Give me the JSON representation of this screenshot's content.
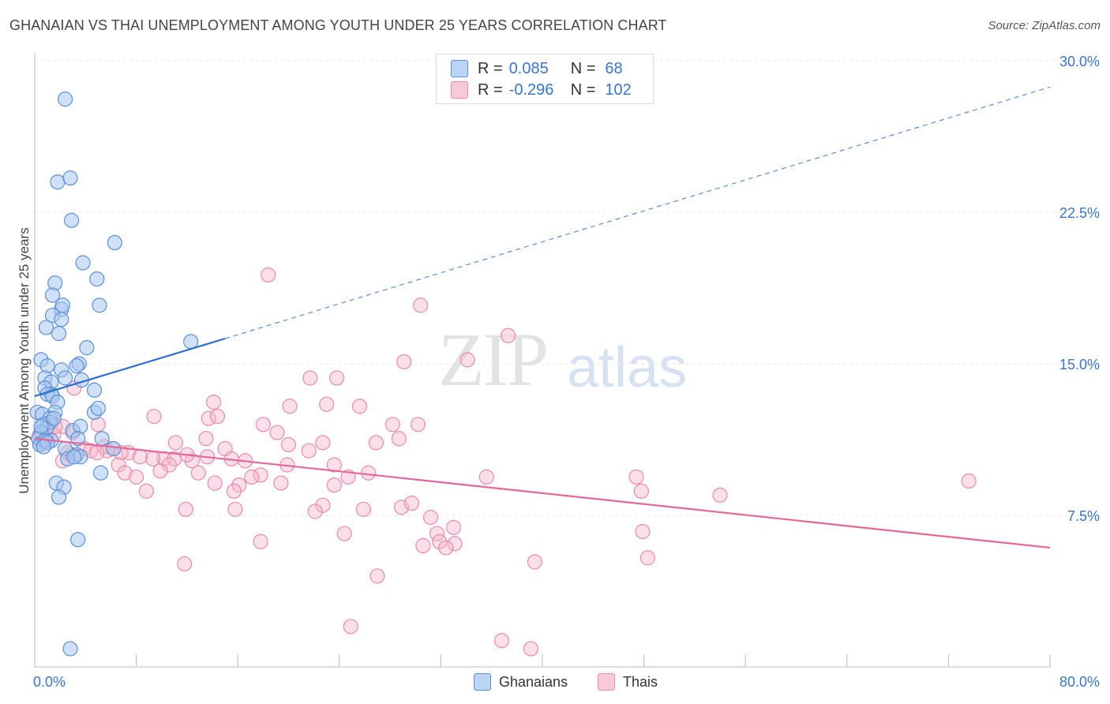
{
  "title": "GHANAIAN VS THAI UNEMPLOYMENT AMONG YOUTH UNDER 25 YEARS CORRELATION CHART",
  "source": "Source: ZipAtlas.com",
  "watermark": {
    "zip": "ZIP",
    "atlas": "atlas"
  },
  "legend": {
    "rows": [
      {
        "r_label": "R =",
        "r_value": "0.085",
        "n_label": "N =",
        "n_value": "68",
        "color": "#a9c7ee"
      },
      {
        "r_label": "R =",
        "r_value": "-0.296",
        "n_label": "N =",
        "n_value": "102",
        "color": "#f5b8cb"
      }
    ]
  },
  "bottom_legend": {
    "ghanaians": "Ghanaians",
    "thais": "Thais"
  },
  "colors": {
    "blue_fill": "#a9c7ee",
    "blue_stroke": "#5b8fd6",
    "blue_line": "#2b6fce",
    "pink_fill": "#f5b8cb",
    "pink_stroke": "#e98aa8",
    "pink_line": "#e4669a",
    "tick_text": "#3a74c4",
    "grid": "#e6e6e6"
  },
  "chart_data": {
    "type": "scatter",
    "title": "GHANAIAN VS THAI UNEMPLOYMENT AMONG YOUTH UNDER 25 YEARS CORRELATION CHART",
    "xlabel": "",
    "ylabel": "Unemployment Among Youth under 25 years",
    "xlim": [
      0,
      80
    ],
    "ylim": [
      0,
      30
    ],
    "x_tick_labels": [
      "0.0%",
      "80.0%"
    ],
    "y_ticks": [
      7.5,
      15.0,
      22.5,
      30.0
    ],
    "y_tick_labels": [
      "7.5%",
      "15.0%",
      "22.5%",
      "30.0%"
    ],
    "grid": true,
    "series": [
      {
        "name": "Ghanaians",
        "points": [
          [
            2.4,
            28.1
          ],
          [
            1.8,
            24.0
          ],
          [
            2.8,
            24.2
          ],
          [
            2.9,
            22.1
          ],
          [
            6.3,
            21.0
          ],
          [
            3.8,
            20.0
          ],
          [
            1.6,
            19.0
          ],
          [
            4.9,
            19.2
          ],
          [
            1.4,
            18.4
          ],
          [
            2.1,
            17.7
          ],
          [
            5.1,
            17.9
          ],
          [
            2.2,
            17.9
          ],
          [
            1.4,
            17.4
          ],
          [
            2.1,
            17.2
          ],
          [
            0.9,
            16.8
          ],
          [
            1.9,
            16.5
          ],
          [
            12.3,
            16.1
          ],
          [
            4.1,
            15.8
          ],
          [
            0.5,
            15.2
          ],
          [
            3.5,
            15.0
          ],
          [
            3.3,
            14.9
          ],
          [
            1.0,
            14.9
          ],
          [
            2.1,
            14.7
          ],
          [
            0.8,
            14.3
          ],
          [
            1.3,
            14.1
          ],
          [
            2.4,
            14.3
          ],
          [
            3.7,
            14.2
          ],
          [
            0.8,
            13.8
          ],
          [
            1.3,
            13.5
          ],
          [
            4.7,
            13.7
          ],
          [
            1.0,
            13.5
          ],
          [
            1.4,
            13.4
          ],
          [
            1.8,
            13.1
          ],
          [
            0.2,
            12.6
          ],
          [
            1.6,
            12.6
          ],
          [
            0.6,
            12.5
          ],
          [
            1.2,
            12.3
          ],
          [
            4.7,
            12.6
          ],
          [
            1.2,
            12.1
          ],
          [
            0.7,
            12.0
          ],
          [
            5.0,
            12.8
          ],
          [
            0.9,
            11.8
          ],
          [
            3.0,
            11.7
          ],
          [
            3.6,
            11.9
          ],
          [
            0.5,
            11.6
          ],
          [
            0.3,
            11.3
          ],
          [
            0.6,
            11.1
          ],
          [
            1.3,
            11.2
          ],
          [
            0.4,
            11.0
          ],
          [
            0.8,
            11.2
          ],
          [
            5.3,
            11.3
          ],
          [
            1.0,
            11.1
          ],
          [
            0.7,
            10.9
          ],
          [
            6.2,
            10.8
          ],
          [
            2.4,
            10.8
          ],
          [
            3.4,
            11.3
          ],
          [
            3.3,
            10.5
          ],
          [
            3.6,
            10.4
          ],
          [
            2.6,
            10.3
          ],
          [
            3.1,
            10.4
          ],
          [
            5.2,
            9.6
          ],
          [
            1.7,
            9.1
          ],
          [
            2.3,
            8.9
          ],
          [
            1.9,
            8.4
          ],
          [
            3.4,
            6.3
          ],
          [
            2.8,
            0.9
          ],
          [
            0.5,
            11.9
          ],
          [
            1.5,
            12.3
          ]
        ],
        "trend_solid": [
          [
            0.0,
            13.4
          ],
          [
            15.0,
            16.25
          ]
        ],
        "trend_dashed": [
          [
            15.0,
            16.25
          ],
          [
            80.0,
            28.7
          ]
        ]
      },
      {
        "name": "Thais",
        "points": [
          [
            18.4,
            19.4
          ],
          [
            30.4,
            17.9
          ],
          [
            37.3,
            16.4
          ],
          [
            29.1,
            15.1
          ],
          [
            34.1,
            15.2
          ],
          [
            21.7,
            14.3
          ],
          [
            23.8,
            14.3
          ],
          [
            3.1,
            13.8
          ],
          [
            14.1,
            13.1
          ],
          [
            20.1,
            12.9
          ],
          [
            23.0,
            13.0
          ],
          [
            25.6,
            12.9
          ],
          [
            9.4,
            12.4
          ],
          [
            13.7,
            12.3
          ],
          [
            14.4,
            12.4
          ],
          [
            18.0,
            12.0
          ],
          [
            28.2,
            12.0
          ],
          [
            30.2,
            12.0
          ],
          [
            5.0,
            12.0
          ],
          [
            2.2,
            11.9
          ],
          [
            3.0,
            11.6
          ],
          [
            1.0,
            11.7
          ],
          [
            1.5,
            11.5
          ],
          [
            19.1,
            11.6
          ],
          [
            13.5,
            11.3
          ],
          [
            11.1,
            11.1
          ],
          [
            20.0,
            11.0
          ],
          [
            22.7,
            11.1
          ],
          [
            26.9,
            11.1
          ],
          [
            28.7,
            11.3
          ],
          [
            15.0,
            10.8
          ],
          [
            21.6,
            10.7
          ],
          [
            5.5,
            10.9
          ],
          [
            6.2,
            10.8
          ],
          [
            3.9,
            10.8
          ],
          [
            4.4,
            10.7
          ],
          [
            5.7,
            10.7
          ],
          [
            7.4,
            10.6
          ],
          [
            6.8,
            10.6
          ],
          [
            13.6,
            10.4
          ],
          [
            10.2,
            10.3
          ],
          [
            11.0,
            10.3
          ],
          [
            12.4,
            10.2
          ],
          [
            15.5,
            10.3
          ],
          [
            16.6,
            10.2
          ],
          [
            19.9,
            10.0
          ],
          [
            23.6,
            10.0
          ],
          [
            9.3,
            10.3
          ],
          [
            10.6,
            10.0
          ],
          [
            4.9,
            10.6
          ],
          [
            2.2,
            10.2
          ],
          [
            2.9,
            10.5
          ],
          [
            6.6,
            10.0
          ],
          [
            8.3,
            10.4
          ],
          [
            9.9,
            9.7
          ],
          [
            7.1,
            9.6
          ],
          [
            8.0,
            9.4
          ],
          [
            12.9,
            9.6
          ],
          [
            17.8,
            9.5
          ],
          [
            14.2,
            9.1
          ],
          [
            17.1,
            9.4
          ],
          [
            19.4,
            9.1
          ],
          [
            24.7,
            9.4
          ],
          [
            26.3,
            9.6
          ],
          [
            35.6,
            9.4
          ],
          [
            47.4,
            9.4
          ],
          [
            73.6,
            9.2
          ],
          [
            16.1,
            9.0
          ],
          [
            23.6,
            9.0
          ],
          [
            15.7,
            8.7
          ],
          [
            8.8,
            8.7
          ],
          [
            47.8,
            8.7
          ],
          [
            54.0,
            8.5
          ],
          [
            22.7,
            8.0
          ],
          [
            22.1,
            7.7
          ],
          [
            25.9,
            7.8
          ],
          [
            28.9,
            7.9
          ],
          [
            29.7,
            8.1
          ],
          [
            11.9,
            7.8
          ],
          [
            15.8,
            7.8
          ],
          [
            31.2,
            7.4
          ],
          [
            33.0,
            6.9
          ],
          [
            24.4,
            6.6
          ],
          [
            31.7,
            6.6
          ],
          [
            47.9,
            6.7
          ],
          [
            31.9,
            6.2
          ],
          [
            33.1,
            6.1
          ],
          [
            32.4,
            5.9
          ],
          [
            17.8,
            6.2
          ],
          [
            11.8,
            5.1
          ],
          [
            48.3,
            5.4
          ],
          [
            39.4,
            5.2
          ],
          [
            27.0,
            4.5
          ],
          [
            24.9,
            2.0
          ],
          [
            36.8,
            1.3
          ],
          [
            39.1,
            0.9
          ],
          [
            30.6,
            6.0
          ],
          [
            1.6,
            11.9
          ],
          [
            0.4,
            11.5
          ],
          [
            0.9,
            11.3
          ],
          [
            2.6,
            10.6
          ],
          [
            12.0,
            10.5
          ]
        ],
        "trend": [
          [
            0.0,
            11.3
          ],
          [
            80.0,
            5.9
          ]
        ]
      }
    ]
  }
}
